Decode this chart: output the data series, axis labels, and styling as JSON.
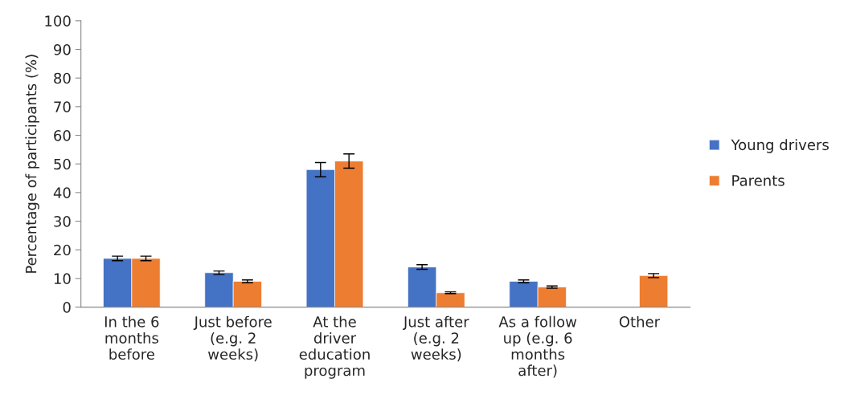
{
  "chart_data": {
    "type": "bar",
    "ylabel": "Percentage of participants (%)",
    "categories": [
      "In the 6 months before",
      "Just before (e.g. 2 weeks)",
      "At the driver education program",
      "Just after (e.g. 2 weeks)",
      "As a follow up (e.g. 6 months after)",
      "Other"
    ],
    "series": [
      {
        "name": "Young drivers",
        "color": "#4472c4",
        "values": [
          17,
          12,
          48,
          14,
          9,
          null
        ],
        "errors": [
          0.8,
          0.6,
          2.5,
          0.8,
          0.5,
          null
        ]
      },
      {
        "name": "Parents",
        "color": "#ed7d31",
        "values": [
          17,
          9,
          51,
          5,
          7,
          11
        ],
        "errors": [
          0.8,
          0.5,
          2.5,
          0.3,
          0.4,
          0.7
        ]
      }
    ],
    "ylim": [
      0,
      100
    ],
    "yticks": [
      0,
      10,
      20,
      30,
      40,
      50,
      60,
      70,
      80,
      90,
      100
    ],
    "grid": false,
    "legend": "right"
  }
}
